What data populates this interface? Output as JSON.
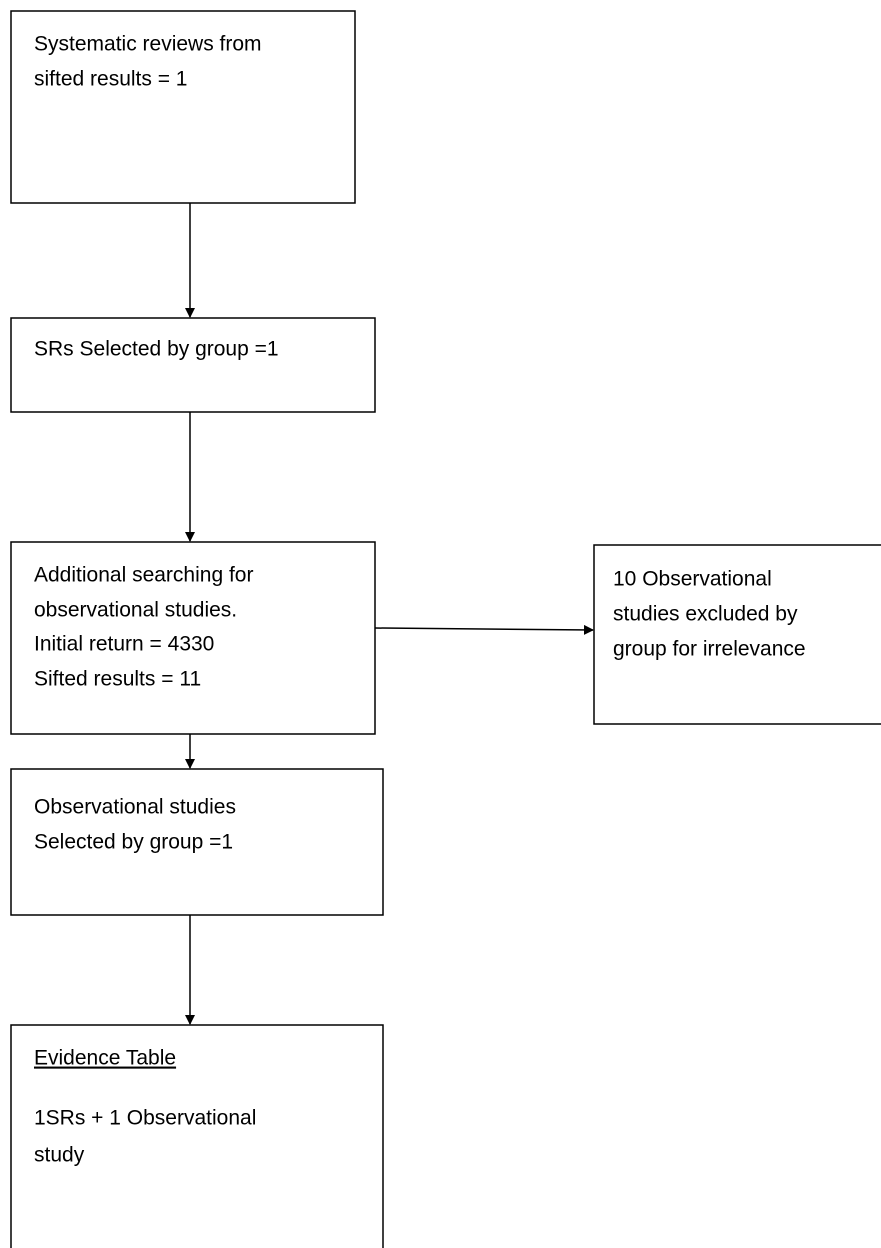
{
  "nodes": [
    {
      "lines": [
        "Systematic reviews from",
        "sifted results = 1"
      ]
    },
    {
      "lines": [
        "SRs Selected by group =1"
      ]
    },
    {
      "lines": [
        "Additional searching for",
        "observational studies.",
        "Initial return = 4330",
        "Sifted results = 11"
      ]
    },
    {
      "lines": [
        "10 Observational",
        "studies excluded by",
        "group for irrelevance"
      ]
    },
    {
      "lines": [
        "Observational studies",
        "Selected by group =1"
      ]
    },
    {
      "heading": "Evidence Table",
      "lines": [
        "1SRs + 1 Observational",
        "study"
      ]
    }
  ]
}
